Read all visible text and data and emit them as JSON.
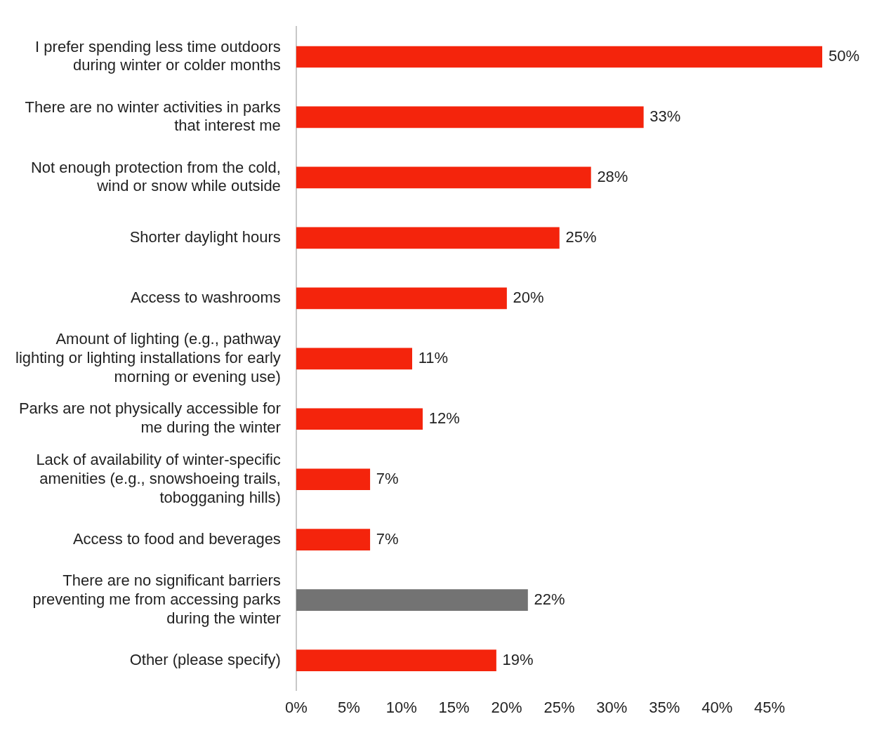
{
  "chart_data": {
    "type": "bar",
    "orientation": "horizontal",
    "categories": [
      "I prefer spending less time outdoors during winter or colder months",
      "There are no winter activities in parks that interest me",
      "Not enough protection from the cold, wind or snow while outside",
      "Shorter daylight hours",
      "Access to washrooms",
      "Amount of lighting (e.g., pathway lighting or lighting installations for early morning or evening use)",
      "Parks are not physically accessible for me during the winter",
      "Lack of availability of winter-specific amenities (e.g., snowshoeing trails, tobogganing hills)",
      "Access to food and beverages",
      "There are no significant barriers preventing me from accessing parks during the winter",
      "Other (please specify)"
    ],
    "values": [
      50,
      33,
      28,
      25,
      20,
      11,
      12,
      7,
      7,
      22,
      19
    ],
    "value_labels": [
      "50%",
      "33%",
      "28%",
      "25%",
      "20%",
      "11%",
      "12%",
      "7%",
      "7%",
      "22%",
      "19%"
    ],
    "colors": [
      "#f4240c",
      "#f4240c",
      "#f4240c",
      "#f4240c",
      "#f4240c",
      "#f4240c",
      "#f4240c",
      "#f4240c",
      "#f4240c",
      "#737373",
      "#f4240c"
    ],
    "xlim": [
      0,
      50
    ],
    "xticks": [
      {
        "value": 0,
        "label": "0%"
      },
      {
        "value": 5,
        "label": "5%"
      },
      {
        "value": 10,
        "label": "10%"
      },
      {
        "value": 15,
        "label": "15%"
      },
      {
        "value": 20,
        "label": "20%"
      },
      {
        "value": 25,
        "label": "25%"
      },
      {
        "value": 30,
        "label": "30%"
      },
      {
        "value": 35,
        "label": "35%"
      },
      {
        "value": 40,
        "label": "40%"
      },
      {
        "value": 45,
        "label": "45%"
      }
    ],
    "grid": false,
    "legend": false
  }
}
